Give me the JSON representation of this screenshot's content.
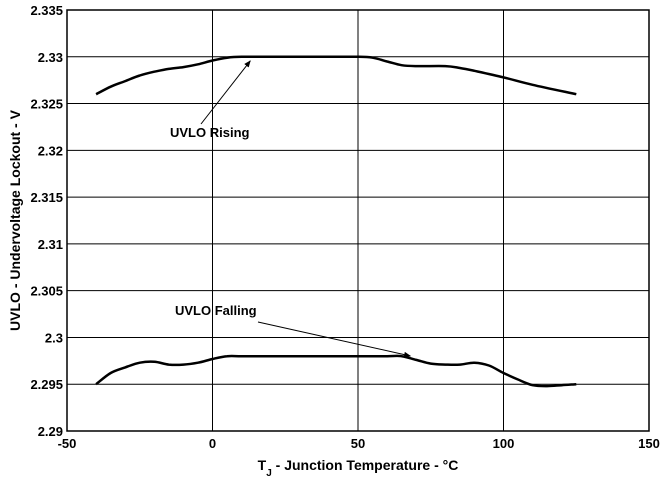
{
  "chart_data": {
    "type": "line",
    "title": "",
    "xlabel_main": "T",
    "xlabel_sub": "J",
    "xlabel_rest": " - Junction Temperature - °C",
    "ylabel": "UVLO - Undervoltage Lockout - V",
    "xlim": [
      -50,
      150
    ],
    "ylim": [
      2.29,
      2.335
    ],
    "x_ticks": [
      -50,
      0,
      50,
      100,
      150
    ],
    "x_tick_labels": [
      "-50",
      "0",
      "50",
      "100",
      "150"
    ],
    "y_ticks": [
      2.29,
      2.295,
      2.3,
      2.305,
      2.31,
      2.315,
      2.32,
      2.325,
      2.33,
      2.335
    ],
    "y_tick_labels": [
      "2.29",
      "2.295",
      "2.3",
      "2.305",
      "2.31",
      "2.315",
      "2.32",
      "2.325",
      "2.33",
      "2.335"
    ],
    "grid": true,
    "series": [
      {
        "name": "UVLO Rising",
        "x": [
          -40,
          -35,
          -30,
          -25,
          -20,
          -15,
          -10,
          -5,
          0,
          5,
          10,
          20,
          30,
          40,
          50,
          55,
          60,
          65,
          70,
          80,
          85,
          90,
          100,
          110,
          125
        ],
        "y": [
          2.326,
          2.3268,
          2.3274,
          2.328,
          2.3284,
          2.3287,
          2.3289,
          2.3292,
          2.3296,
          2.3299,
          2.33,
          2.33,
          2.33,
          2.33,
          2.33,
          2.3299,
          2.3295,
          2.3291,
          2.329,
          2.329,
          2.3288,
          2.3285,
          2.3278,
          2.327,
          2.326
        ]
      },
      {
        "name": "UVLO Falling",
        "x": [
          -40,
          -35,
          -30,
          -25,
          -20,
          -15,
          -10,
          -5,
          0,
          5,
          10,
          20,
          30,
          40,
          50,
          60,
          65,
          70,
          75,
          80,
          85,
          90,
          95,
          100,
          105,
          110,
          115,
          120,
          125
        ],
        "y": [
          2.295,
          2.2962,
          2.2968,
          2.2973,
          2.2974,
          2.2971,
          2.2971,
          2.2973,
          2.2977,
          2.298,
          2.298,
          2.298,
          2.298,
          2.298,
          2.298,
          2.298,
          2.298,
          2.2976,
          2.2972,
          2.2971,
          2.2971,
          2.2973,
          2.297,
          2.2962,
          2.2955,
          2.2949,
          2.2948,
          2.2949,
          2.295
        ]
      }
    ],
    "annotations": [
      {
        "text": "UVLO Rising",
        "target_x": 13,
        "target_y": 2.33
      },
      {
        "text": "UVLO Falling",
        "target_x": 68,
        "target_y": 2.2977
      }
    ]
  }
}
